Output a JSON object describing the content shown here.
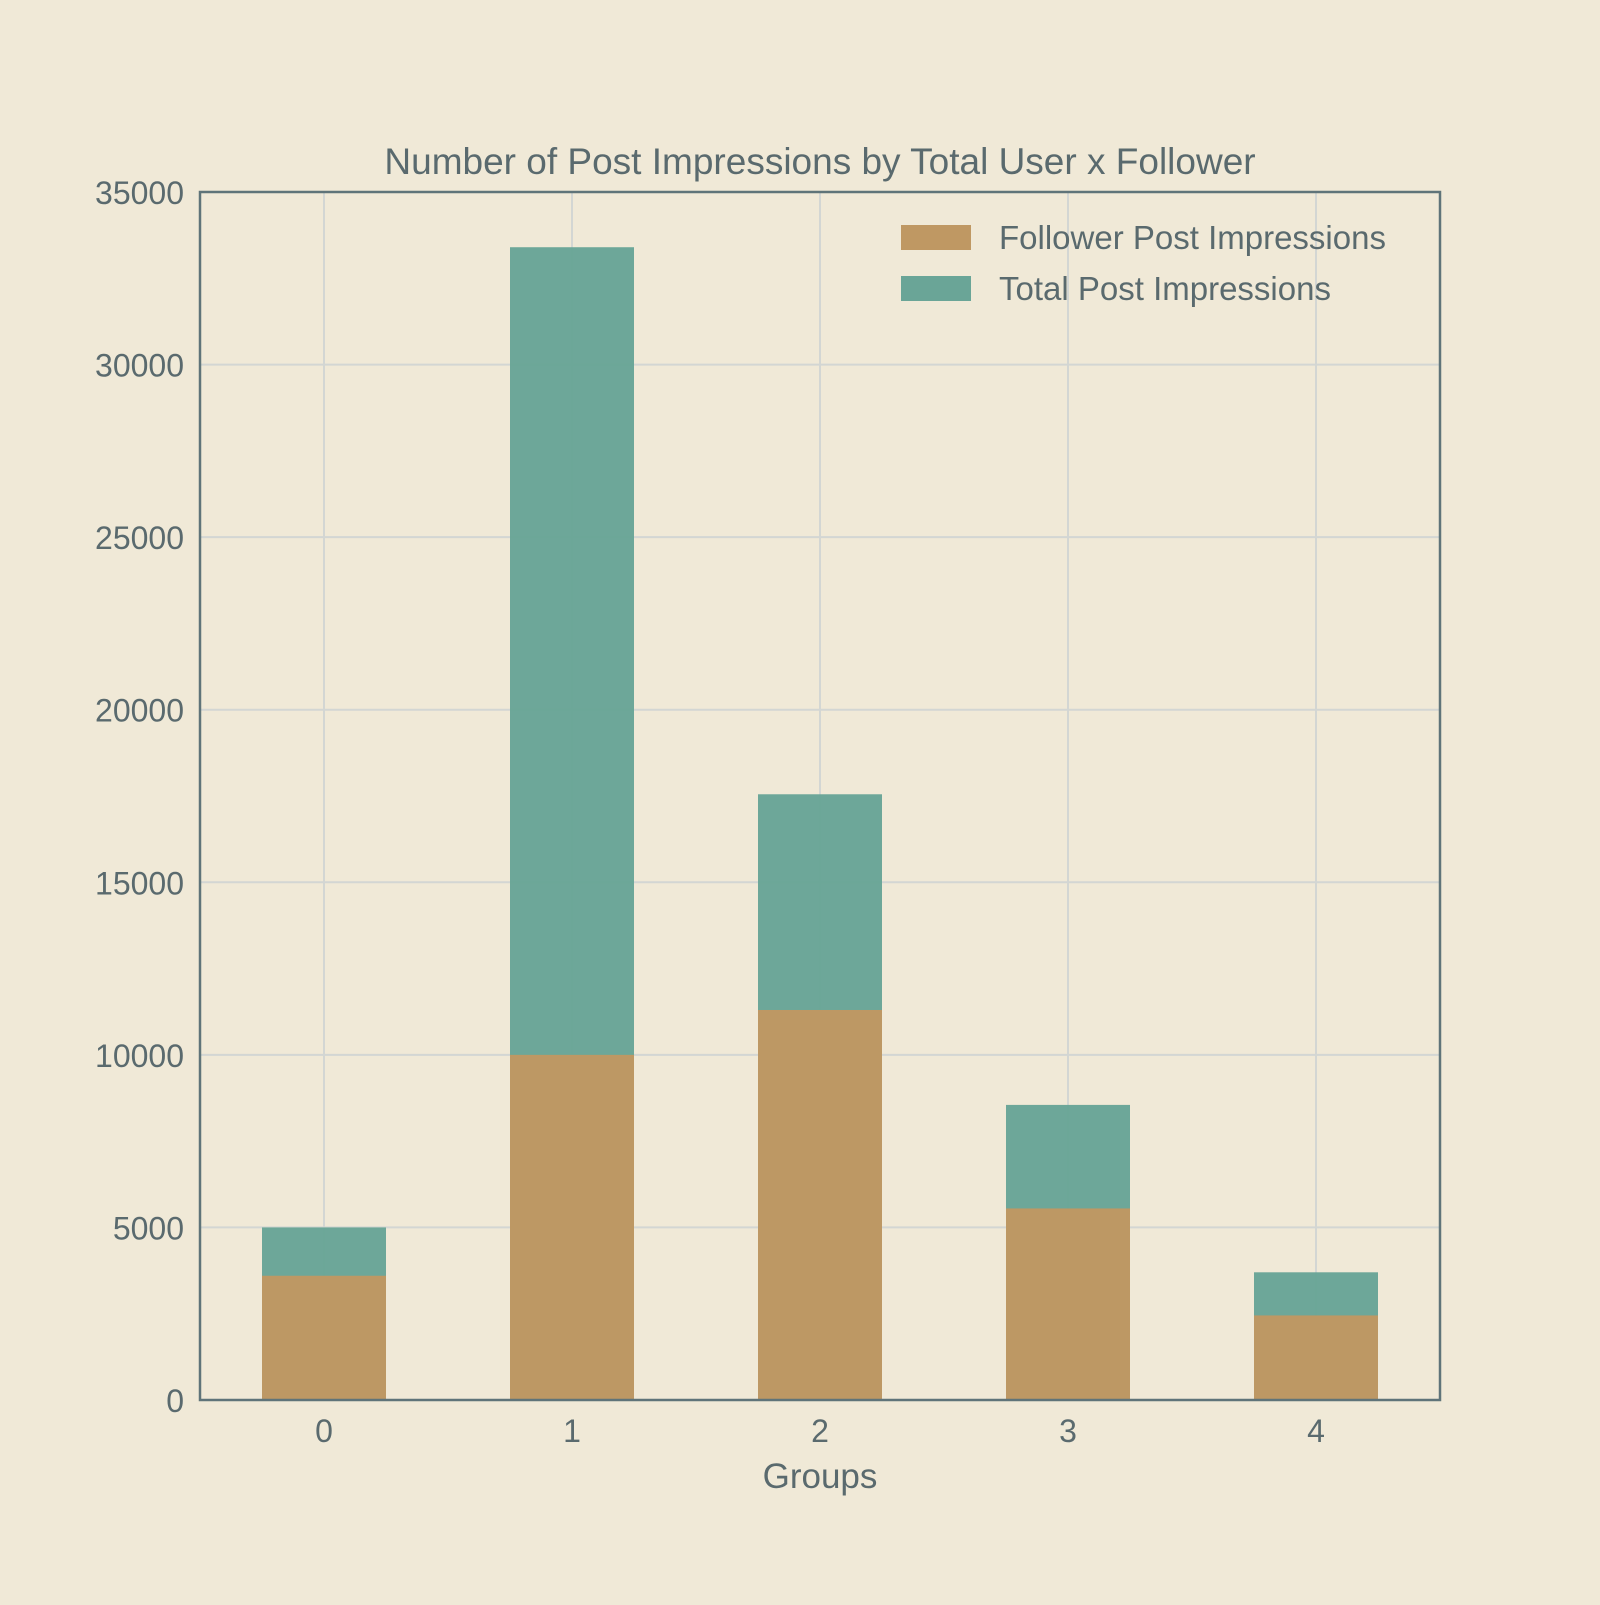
{
  "chart_data": {
    "type": "bar",
    "title": "Number of Post Impressions by Total User x Follower",
    "xlabel": "Groups",
    "ylabel": "",
    "categories": [
      "0",
      "1",
      "2",
      "3",
      "4"
    ],
    "series": [
      {
        "name": "Total Post Impressions",
        "values": [
          5000,
          33400,
          17550,
          8550,
          3700
        ],
        "color": "#6aa597"
      },
      {
        "name": "Follower Post Impressions",
        "values": [
          3600,
          10000,
          11300,
          5550,
          2450
        ],
        "color": "#bf9863"
      }
    ],
    "legend": [
      "Follower Post Impressions",
      "Total Post Impressions"
    ],
    "legend_position": "top-right",
    "ylim": [
      0,
      35000
    ],
    "yticks": [
      0,
      5000,
      10000,
      15000,
      20000,
      25000,
      30000,
      35000
    ],
    "grid": true,
    "colors": {
      "background": "#f0e9d7",
      "axis": "#5f7479",
      "grid": "#d3d6d3",
      "text": "#5a6a6e"
    }
  }
}
